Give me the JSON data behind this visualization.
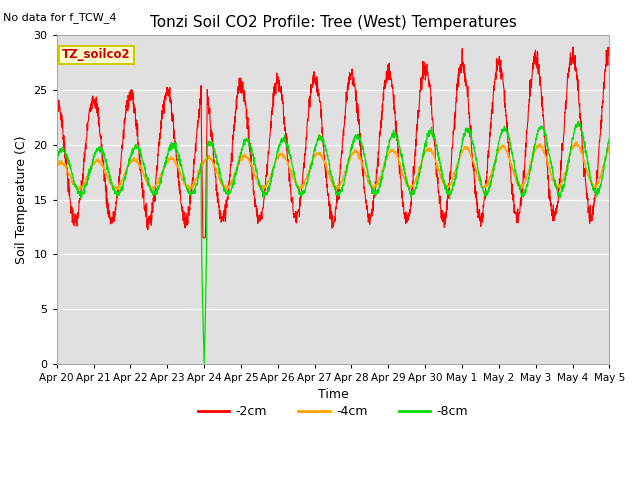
{
  "title": "Tonzi Soil CO2 Profile: Tree (West) Temperatures",
  "no_data_note": "No data for f_TCW_4",
  "ylabel": "Soil Temperature (C)",
  "xlabel": "Time",
  "legend_label": "TZ_soilco2",
  "ylim": [
    0,
    30
  ],
  "bg_color": "#e0e0e0",
  "line_colors": {
    "neg2cm": "#ff0000",
    "neg4cm": "#ffa500",
    "neg8cm": "#00dd00"
  },
  "legend_entries": [
    "-2cm",
    "-4cm",
    "-8cm"
  ],
  "x_tick_labels": [
    "Apr 20",
    "Apr 21",
    "Apr 22",
    "Apr 23",
    "Apr 24",
    "Apr 25",
    "Apr 26",
    "Apr 27",
    "Apr 28",
    "Apr 29",
    "Apr 30",
    "May 1",
    "May 2",
    "May 3",
    "May 4",
    "May 5"
  ],
  "num_days": 15,
  "pts_per_day": 144,
  "figsize": [
    6.4,
    4.8
  ],
  "dpi": 100
}
